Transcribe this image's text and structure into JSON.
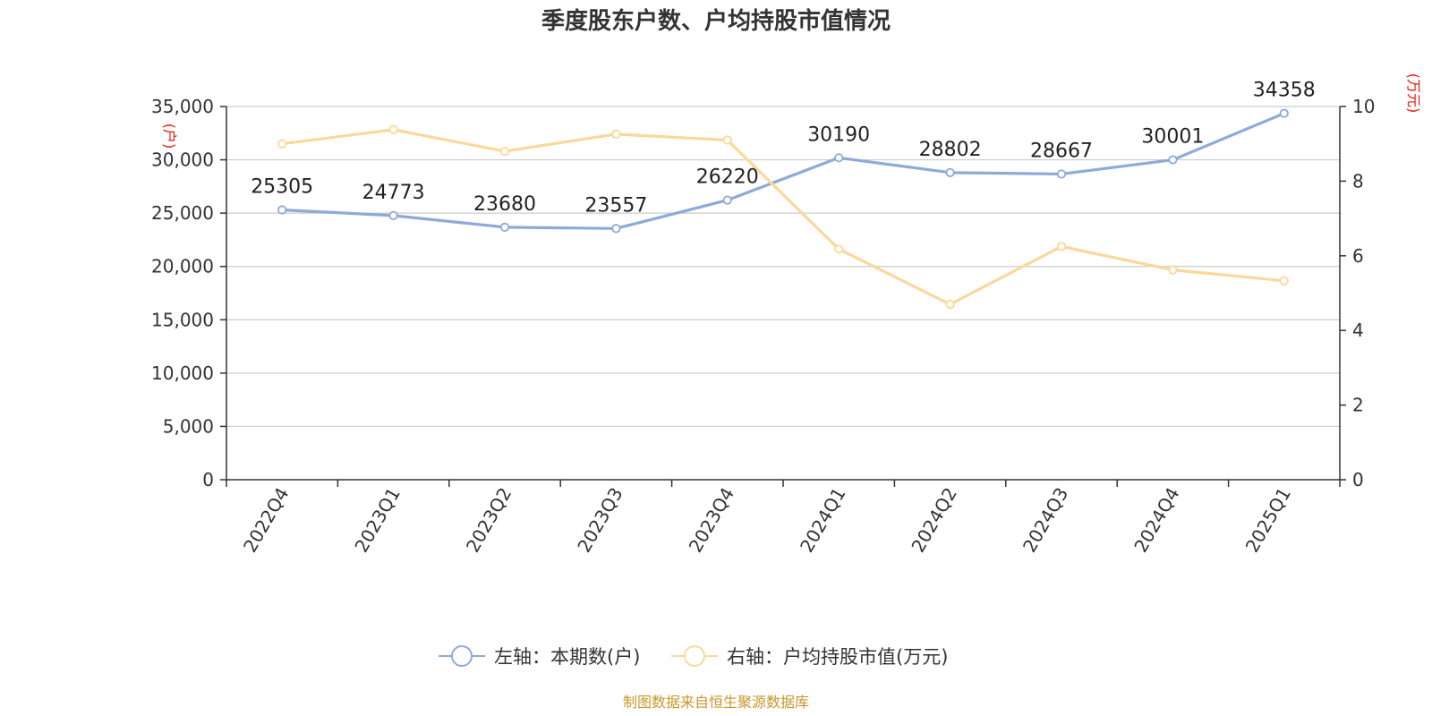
{
  "chart_data": {
    "type": "line",
    "title": "季度股东户数、户均持股市值情况",
    "categories": [
      "2022Q4",
      "2023Q1",
      "2023Q2",
      "2023Q3",
      "2023Q4",
      "2024Q1",
      "2024Q2",
      "2024Q3",
      "2024Q4",
      "2025Q1"
    ],
    "y_left": {
      "unit": "(户)",
      "range": [
        0,
        35000
      ],
      "ticks": [
        0,
        5000,
        10000,
        15000,
        20000,
        25000,
        30000,
        35000
      ],
      "tick_labels": [
        "0",
        "5,000",
        "10,000",
        "15,000",
        "20,000",
        "25,000",
        "30,000",
        "35,000"
      ]
    },
    "y_right": {
      "unit": "(万元)",
      "range": [
        0,
        10
      ],
      "ticks": [
        0,
        2,
        4,
        6,
        8,
        10
      ],
      "tick_labels": [
        "0",
        "2",
        "4",
        "6",
        "8",
        "10"
      ]
    },
    "grid": true,
    "legend_position": "bottom",
    "series": [
      {
        "name": "左轴：本期数(户)",
        "axis": "left",
        "color": "#8eaad8",
        "values": [
          25305,
          24773,
          23680,
          23557,
          26220,
          30190,
          28802,
          28667,
          30001,
          34358
        ],
        "labels": [
          "25305",
          "24773",
          "23680",
          "23557",
          "26220",
          "30190",
          "28802",
          "28667",
          "30001",
          "34358"
        ]
      },
      {
        "name": "右轴：户均持股市值(万元)",
        "axis": "right",
        "color": "#fbd89a",
        "values": [
          9.0,
          9.38,
          8.8,
          9.26,
          9.1,
          6.18,
          4.7,
          6.25,
          5.62,
          5.33
        ]
      }
    ]
  },
  "source": "制图数据来自恒生聚源数据库"
}
